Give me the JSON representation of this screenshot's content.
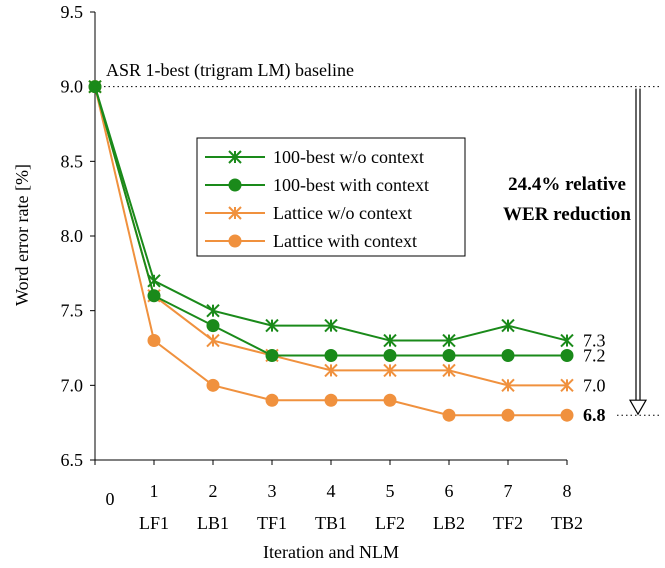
{
  "chart_data": {
    "type": "line",
    "title": "",
    "xlabel": "Iteration and NLM",
    "ylabel": "Word error rate [%]",
    "ylim": [
      6.5,
      9.5
    ],
    "yticks": [
      "6.5",
      "7.0",
      "7.5",
      "8.0",
      "8.5",
      "9.0",
      "9.5"
    ],
    "x": [
      0,
      1,
      2,
      3,
      4,
      5,
      6,
      7,
      8
    ],
    "x_tick_labels": [
      "0",
      "1",
      "2",
      "3",
      "4",
      "5",
      "6",
      "7",
      "8"
    ],
    "x_category_labels": [
      "",
      "LF1",
      "LB1",
      "TF1",
      "TB1",
      "LF2",
      "LB2",
      "TF2",
      "TB2"
    ],
    "grid": false,
    "legend_position": "center-right",
    "series": [
      {
        "name": "100-best w/o context",
        "color": "#1a8a1a",
        "marker": "asterisk",
        "values": [
          9.0,
          7.7,
          7.5,
          7.4,
          7.4,
          7.3,
          7.3,
          7.4,
          7.3
        ]
      },
      {
        "name": "100-best with context",
        "color": "#1a8a1a",
        "marker": "circle",
        "values": [
          9.0,
          7.6,
          7.4,
          7.2,
          7.2,
          7.2,
          7.2,
          7.2,
          7.2
        ]
      },
      {
        "name": "Lattice w/o context",
        "color": "#f0913e",
        "marker": "asterisk",
        "values": [
          9.0,
          7.6,
          7.3,
          7.2,
          7.1,
          7.1,
          7.1,
          7.0,
          7.0
        ]
      },
      {
        "name": "Lattice with context",
        "color": "#f0913e",
        "marker": "circle",
        "values": [
          9.0,
          7.3,
          7.0,
          6.9,
          6.9,
          6.9,
          6.8,
          6.8,
          6.8
        ]
      }
    ],
    "end_labels": [
      {
        "value": 7.3,
        "text": "7.3",
        "bold": false
      },
      {
        "value": 7.2,
        "text": "7.2",
        "bold": false
      },
      {
        "value": 7.0,
        "text": "7.0",
        "bold": false
      },
      {
        "value": 6.8,
        "text": "6.8",
        "bold": true
      }
    ],
    "annotations": {
      "baseline_label": "ASR 1-best (trigram LM) baseline",
      "baseline_value": 9.0,
      "reduction_line1": "24.4% relative",
      "reduction_line2": "WER reduction"
    }
  }
}
